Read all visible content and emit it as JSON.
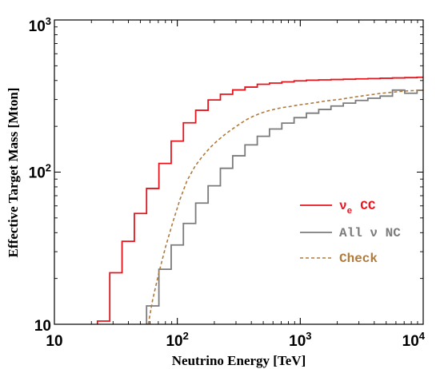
{
  "chart_data": {
    "type": "line",
    "xlabel": "Neutrino Energy [TeV]",
    "ylabel": "Effective Target Mass [Mton]",
    "x_scale": "log",
    "y_scale": "log",
    "xlim": [
      10,
      10000
    ],
    "ylim": [
      10,
      1000
    ],
    "x_ticks": [
      {
        "value": 10,
        "base": "10",
        "exp": ""
      },
      {
        "value": 100,
        "base": "10",
        "exp": "2"
      },
      {
        "value": 1000,
        "base": "10",
        "exp": "3"
      },
      {
        "value": 10000,
        "base": "10",
        "exp": "4"
      }
    ],
    "y_ticks": [
      {
        "value": 10,
        "base": "10",
        "exp": ""
      },
      {
        "value": 100,
        "base": "10",
        "exp": "2"
      },
      {
        "value": 1000,
        "base": "10",
        "exp": "3"
      }
    ],
    "grid": false,
    "legend_position": "center-right",
    "series": [
      {
        "name": "ν_e CC",
        "legend_text": "CC",
        "legend_symbol": "ν",
        "legend_sub": "e",
        "color": "#e8141b",
        "style": "step-solid",
        "x": [
          22.4,
          28.2,
          35.5,
          44.7,
          56.2,
          70.8,
          89.1,
          112,
          141,
          178,
          224,
          282,
          355,
          447,
          562,
          708,
          891,
          1122,
          1413,
          1778,
          2239,
          2818,
          3548,
          4467,
          5623,
          7079,
          8913,
          10000
        ],
        "y": [
          10.5,
          21.8,
          35.1,
          53.5,
          78.1,
          114.0,
          160.0,
          211.0,
          255.0,
          298.0,
          325.0,
          347.0,
          362.0,
          378.0,
          385.0,
          392.0,
          398.0,
          402.0,
          404.0,
          406.0,
          408.0,
          410.0,
          412.0,
          414.0,
          416.0,
          418.0,
          420.0,
          420.0
        ]
      },
      {
        "name": "All ν NC",
        "legend_text": "All ν NC",
        "color": "#7b7b7b",
        "style": "step-solid",
        "x": [
          56.2,
          70.8,
          89.1,
          112,
          141,
          178,
          224,
          282,
          355,
          447,
          562,
          708,
          891,
          1122,
          1413,
          1778,
          2239,
          2818,
          3548,
          4467,
          5623,
          7079,
          8913,
          10000
        ],
        "y": [
          13.2,
          23.0,
          33.2,
          46.0,
          62.6,
          81.3,
          106.0,
          128.0,
          151.0,
          172.0,
          192.0,
          210.0,
          228.0,
          244.0,
          258.0,
          272.0,
          284.0,
          296.0,
          306.0,
          316.0,
          346.0,
          330.0,
          345.0,
          345.0
        ]
      },
      {
        "name": "Check",
        "legend_text": "Check",
        "color": "#b07a3c",
        "style": "dashed-smooth",
        "x": [
          58,
          63,
          70,
          80,
          92,
          105,
          120,
          140,
          160,
          185,
          210,
          240,
          270,
          310,
          360,
          410,
          470,
          550,
          630,
          720,
          830,
          960,
          1100,
          1280,
          1500,
          1750,
          2050,
          2400,
          2800,
          3300,
          3900,
          4600,
          5400,
          6300,
          7400,
          8600,
          10000
        ],
        "y": [
          10,
          14.5,
          21,
          32,
          47,
          66,
          88,
          110,
          127,
          145,
          160,
          175,
          188,
          203,
          220,
          232,
          243,
          253,
          260,
          266,
          270,
          276,
          280,
          285,
          291,
          296,
          300,
          306,
          312,
          318,
          324,
          330,
          334,
          338,
          342,
          344,
          346
        ]
      }
    ]
  }
}
